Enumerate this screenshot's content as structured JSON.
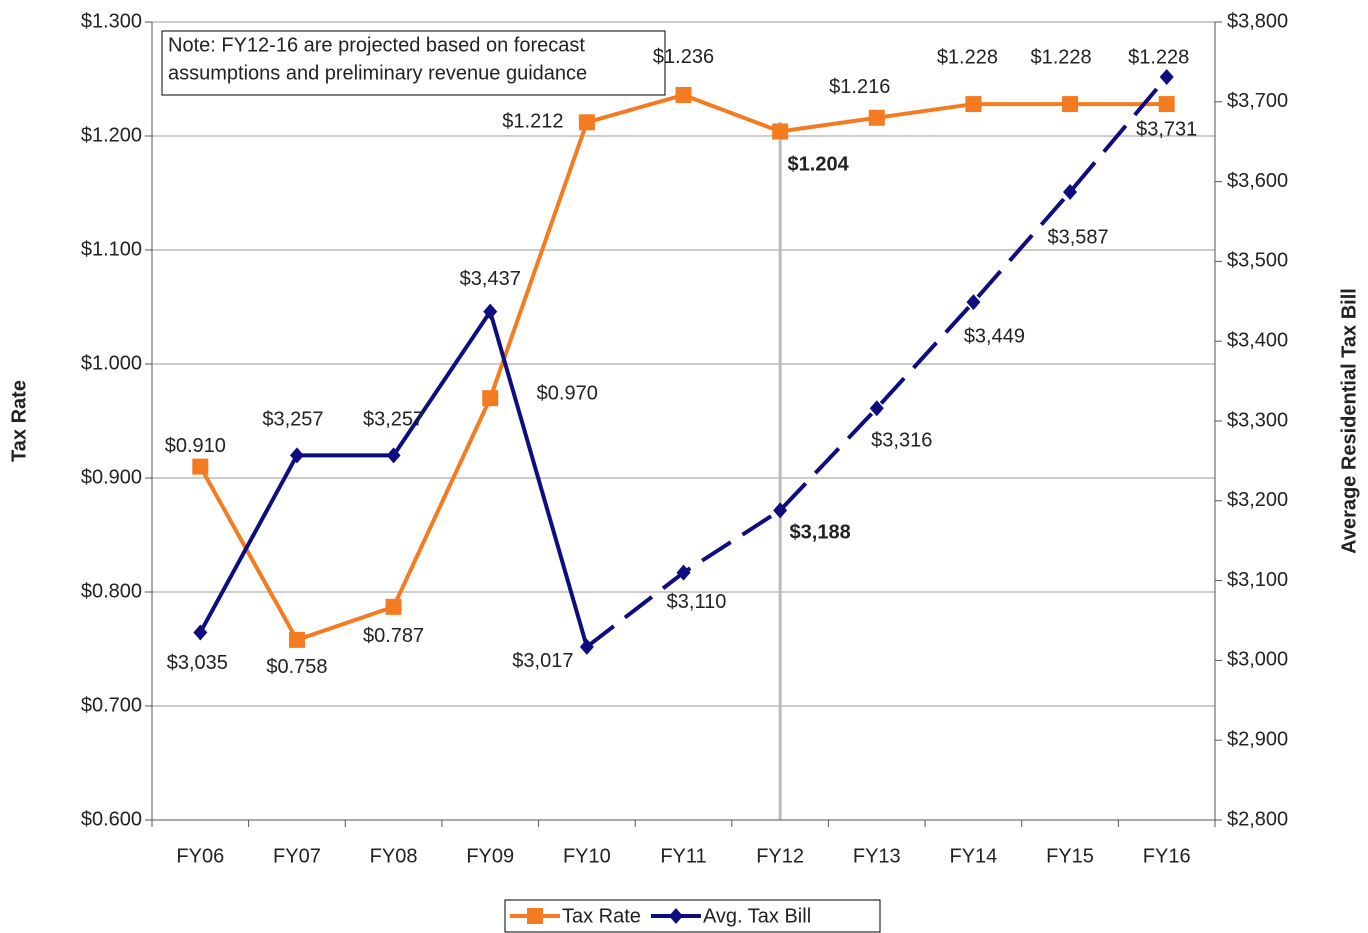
{
  "chart_data": {
    "type": "line",
    "note": [
      "Note:  FY12-16 are projected based on forecast",
      "assumptions and preliminary revenue guidance"
    ],
    "ylabel": "Tax Rate",
    "y2label": "Average Residential Tax Bill",
    "categories": [
      "FY06",
      "FY07",
      "FY08",
      "FY09",
      "FY10",
      "FY11",
      "FY12",
      "FY13",
      "FY14",
      "FY15",
      "FY16"
    ],
    "series": [
      {
        "name": "Tax Rate",
        "color": "#f47b20",
        "marker": "square",
        "axis": "y",
        "values": [
          0.91,
          0.758,
          0.787,
          0.97,
          1.212,
          1.236,
          1.204,
          1.216,
          1.228,
          1.228,
          1.228
        ],
        "value_labels": [
          "$0.910",
          "$0.758",
          "$0.787",
          "$0.970",
          "$1.212",
          "$1.236",
          "$1.204",
          "$1.216",
          "$1.228",
          "$1.228",
          "$1.228"
        ]
      },
      {
        "name": "Avg. Tax Bill",
        "color": "#0d0d80",
        "marker": "diamond",
        "axis": "y2",
        "dashed_from": "FY10",
        "values": [
          3035,
          3257,
          3257,
          3437,
          3017,
          3110,
          3188,
          3316,
          3449,
          3587,
          3731
        ],
        "value_labels": [
          "$3,035",
          "$3,257",
          "$3,257",
          "$3,437",
          "$3,017",
          "$3,110",
          "$3,188",
          "$3,316",
          "$3,449",
          "$3,587",
          "$3,731"
        ]
      }
    ],
    "highlight_category": "FY12",
    "ylim": [
      0.6,
      1.3
    ],
    "yticks": [
      {
        "value": 0.6,
        "label": "$0.600"
      },
      {
        "value": 0.7,
        "label": "$0.700"
      },
      {
        "value": 0.8,
        "label": "$0.800"
      },
      {
        "value": 0.9,
        "label": "$0.900"
      },
      {
        "value": 1.0,
        "label": "$1.000"
      },
      {
        "value": 1.1,
        "label": "$1.100"
      },
      {
        "value": 1.2,
        "label": "$1.200"
      },
      {
        "value": 1.3,
        "label": "$1.300"
      }
    ],
    "y2lim": [
      2800,
      3800
    ],
    "y2ticks": [
      {
        "value": 2800,
        "label": "$2,800"
      },
      {
        "value": 2900,
        "label": "$2,900"
      },
      {
        "value": 3000,
        "label": "$3,000"
      },
      {
        "value": 3100,
        "label": "$3,100"
      },
      {
        "value": 3200,
        "label": "$3,200"
      },
      {
        "value": 3300,
        "label": "$3,300"
      },
      {
        "value": 3400,
        "label": "$3,400"
      },
      {
        "value": 3500,
        "label": "$3,500"
      },
      {
        "value": 3600,
        "label": "$3,600"
      },
      {
        "value": 3700,
        "label": "$3,700"
      },
      {
        "value": 3800,
        "label": "$3,800"
      }
    ],
    "grid": true,
    "legend": "bottom"
  }
}
